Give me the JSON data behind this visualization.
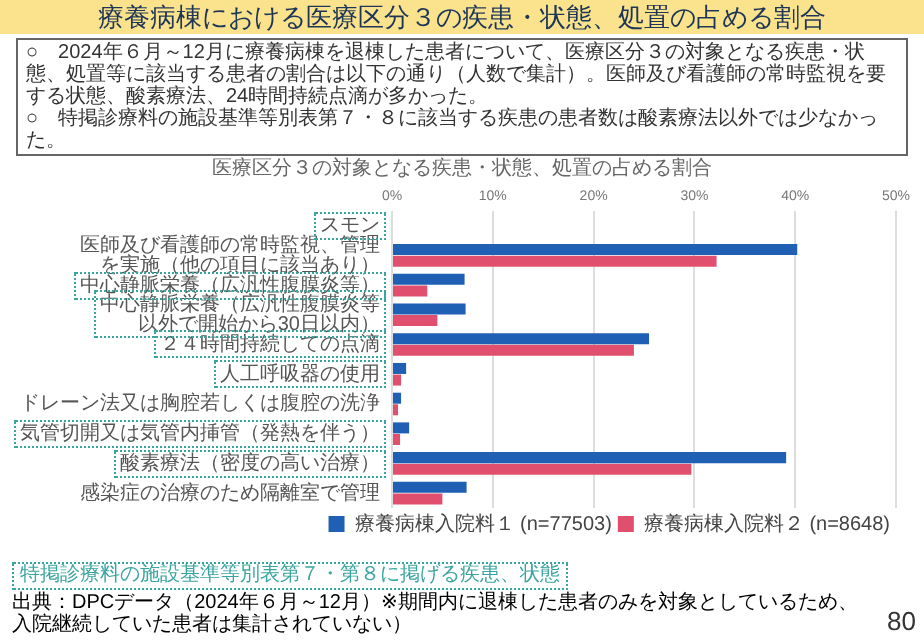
{
  "chart_data": {
    "type": "bar",
    "orientation": "horizontal",
    "title": "療養病棟における医療区分３の疾患・状態、処置の占める割合",
    "subtitle": "医療区分３の対象となる疾患・状態、処置の占める割合",
    "categories": [
      "スモン",
      "医師及び看護師の常時監視、管理を実施（他の項目に該当あり）",
      "中心静脈栄養（広汎性腹膜炎等）",
      "中心静脈栄養（広汎性腹膜炎等以外で開始から30日以内）",
      "２４時間持続しての点滴",
      "人工呼吸器の使用",
      "ドレーン法又は胸腔若しくは腹腔の洗浄",
      "気管切開又は気管内挿管（発熱を伴う）",
      "酸素療法（密度の高い治療）",
      "感染症の治療のため隔離室で管理"
    ],
    "series": [
      {
        "name": "療養病棟入院料１ (n=77503)",
        "color": "#1f5fb4",
        "values": [
          0,
          40.2,
          7.2,
          7.3,
          25.5,
          1.4,
          0.9,
          1.7,
          39.1,
          7.4
        ]
      },
      {
        "name": "療養病棟入院料２ (n=8648)",
        "color": "#e0506e",
        "values": [
          0,
          32.2,
          3.5,
          4.5,
          24.0,
          0.9,
          0.6,
          0.8,
          29.7,
          5.0
        ]
      }
    ],
    "xlim": [
      0,
      50
    ],
    "xticks": [
      {
        "value": 0,
        "label": "0%"
      },
      {
        "value": 10,
        "label": "10%"
      },
      {
        "value": 20,
        "label": "20%"
      },
      {
        "value": 30,
        "label": "30%"
      },
      {
        "value": 40,
        "label": "40%"
      },
      {
        "value": 50,
        "label": "50%"
      }
    ],
    "grid": "x",
    "legend": "bottom",
    "annotations": [
      "○　2024年６月～12月に療養病棟を退棟した患者について、医療区分３の対象となる疾患・状態、処置等に該当する患者の割合は以下の通り（人数で集計）。医師及び看護師の常時監視を要する状態、酸素療法、24時間持続点滴が多かった。",
      "○　特掲診療料の施設基準等別表第７・８に該当する疾患の患者数は酸素療法以外では少なかった。",
      "特掲診療料の施設基準等別表第７・第８に掲げる疾患、状態",
      "出典：DPCデータ（2024年６月～12月）※期間内に退棟した患者のみを対象としているため、入院継続していた患者は集計されていない）",
      "80"
    ]
  }
}
